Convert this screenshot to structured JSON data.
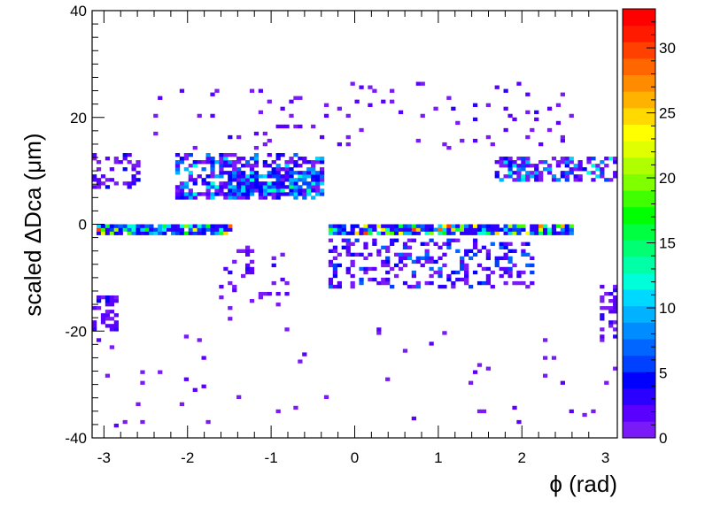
{
  "chart_data": {
    "type": "heatmap",
    "xlabel": "ϕ (rad)",
    "ylabel": "scaled ΔDca (μm)",
    "xlim": [
      -3.1416,
      3.1416
    ],
    "ylim": [
      -40,
      40
    ],
    "x_ticks": [
      "-3",
      "-2",
      "-1",
      "0",
      "1",
      "2",
      "3"
    ],
    "y_ticks": [
      "-40",
      "-20",
      "0",
      "20",
      "40"
    ],
    "x_bins": 120,
    "y_bins": 120,
    "colorbar": {
      "range": [
        0,
        33
      ],
      "ticks": [
        "0",
        "5",
        "10",
        "15",
        "20",
        "25",
        "30"
      ],
      "palette": [
        "#7a1bf7",
        "#5a00ff",
        "#2c00ff",
        "#0000ff",
        "#0040ff",
        "#0066ff",
        "#008cff",
        "#00b2ff",
        "#00d9ff",
        "#00ffd8",
        "#00ffa6",
        "#00ff72",
        "#00ff40",
        "#00ff00",
        "#40ff00",
        "#80ff00",
        "#b0ff00",
        "#e0ff00",
        "#ffff00",
        "#ffd900",
        "#ffb300",
        "#ff8c00",
        "#ff6600",
        "#ff4000",
        "#ff1a00",
        "#ff0000"
      ]
    },
    "features": [
      {
        "name": "low_band",
        "x": [
          -3.05,
          -1.5
        ],
        "y": [
          -2,
          -0.5
        ],
        "count_range": [
          3,
          30
        ],
        "density": 0.95
      },
      {
        "name": "low_band_right",
        "x": [
          -0.3,
          2.6
        ],
        "y": [
          -2,
          -0.5
        ],
        "count_range": [
          3,
          30
        ],
        "density": 0.9
      },
      {
        "name": "upper_arc_left",
        "x": [
          -2.1,
          -0.4
        ],
        "y": [
          5,
          13
        ],
        "count_range": [
          1,
          13
        ],
        "density": 0.55
      },
      {
        "name": "upper_arc_left_core",
        "x": [
          -1.5,
          -0.4
        ],
        "y": [
          5.5,
          9.5
        ],
        "count_range": [
          3,
          14
        ],
        "density": 0.75
      },
      {
        "name": "upper_right_band",
        "x": [
          1.7,
          3.14
        ],
        "y": [
          8,
          12.5
        ],
        "count_range": [
          1,
          13
        ],
        "density": 0.5
      },
      {
        "name": "left_edge_upper",
        "x": [
          -3.14,
          -2.6
        ],
        "y": [
          7,
          13
        ],
        "count_range": [
          1,
          6
        ],
        "density": 0.4
      },
      {
        "name": "mid_lower_cluster",
        "x": [
          -0.3,
          2.1
        ],
        "y": [
          -12,
          -3
        ],
        "count_range": [
          1,
          8
        ],
        "density": 0.35
      },
      {
        "name": "lower_left_edge",
        "x": [
          -3.14,
          -2.85
        ],
        "y": [
          -20,
          -14
        ],
        "count_range": [
          1,
          5
        ],
        "density": 0.45
      },
      {
        "name": "lower_diag",
        "x": [
          -1.6,
          -0.8
        ],
        "y": [
          -18,
          -4
        ],
        "count_range": [
          1,
          3
        ],
        "density": 0.12
      },
      {
        "name": "right_edge_lower",
        "x": [
          2.95,
          3.14
        ],
        "y": [
          -22,
          -12
        ],
        "count_range": [
          1,
          4
        ],
        "density": 0.4
      },
      {
        "name": "upper_scatter",
        "x": [
          -2.6,
          2.6
        ],
        "y": [
          14,
          26
        ],
        "count_range": [
          1,
          3
        ],
        "density": 0.04
      },
      {
        "name": "lower_scatter",
        "x": [
          -3.14,
          3.14
        ],
        "y": [
          -38,
          -20
        ],
        "count_range": [
          1,
          2
        ],
        "density": 0.015
      }
    ]
  }
}
